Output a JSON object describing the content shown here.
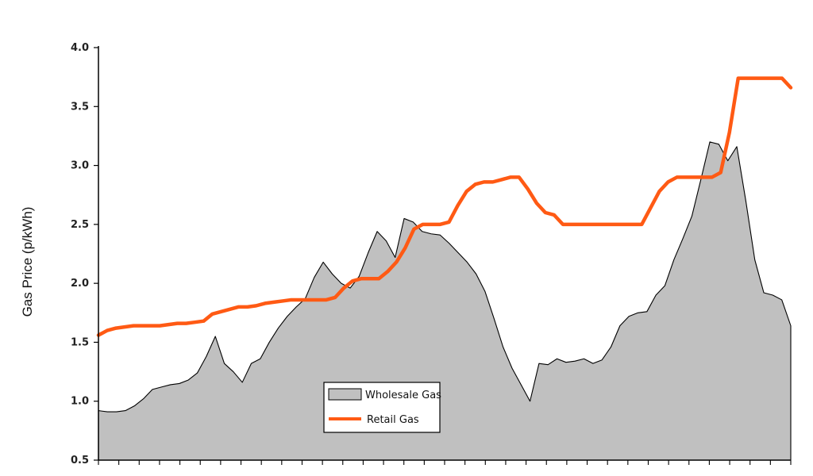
{
  "chart_data": {
    "type": "area",
    "ylabel": "Gas Price (p/kWh)",
    "ylim": [
      0.5,
      4.0
    ],
    "y_ticks": [
      "0.5",
      "1.0",
      "1.5",
      "2.0",
      "2.5",
      "3.0",
      "3.5",
      "4.0"
    ],
    "grid": false,
    "legend_position": "bottom-center",
    "series": [
      {
        "name": "Wholesale Gas",
        "kind": "area",
        "color": "#c0c0c0",
        "values": [
          0.92,
          0.91,
          0.91,
          0.92,
          0.96,
          1.02,
          1.1,
          1.12,
          1.14,
          1.15,
          1.18,
          1.24,
          1.38,
          1.55,
          1.32,
          1.25,
          1.16,
          1.32,
          1.36,
          1.5,
          1.62,
          1.72,
          1.8,
          1.87,
          2.05,
          2.18,
          2.08,
          2.0,
          1.96,
          2.06,
          2.26,
          2.44,
          2.36,
          2.22,
          2.55,
          2.52,
          2.44,
          2.42,
          2.41,
          2.34,
          2.26,
          2.18,
          2.08,
          1.93,
          1.7,
          1.46,
          1.28,
          1.14,
          1.0,
          1.32,
          1.31,
          1.36,
          1.33,
          1.34,
          1.36,
          1.32,
          1.35,
          1.46,
          1.64,
          1.72,
          1.75,
          1.76,
          1.9,
          1.98,
          2.2,
          2.38,
          2.57,
          2.88,
          3.2,
          3.18,
          3.04,
          3.16,
          2.7,
          2.2,
          1.92,
          1.9,
          1.86,
          1.64
        ]
      },
      {
        "name": "Retail Gas",
        "kind": "line",
        "color": "#ff5a14",
        "values": [
          1.56,
          1.6,
          1.62,
          1.63,
          1.64,
          1.64,
          1.64,
          1.64,
          1.65,
          1.66,
          1.66,
          1.67,
          1.68,
          1.74,
          1.76,
          1.78,
          1.8,
          1.8,
          1.81,
          1.83,
          1.84,
          1.85,
          1.86,
          1.86,
          1.86,
          1.86,
          1.86,
          1.88,
          1.96,
          2.02,
          2.04,
          2.04,
          2.04,
          2.1,
          2.18,
          2.3,
          2.46,
          2.5,
          2.5,
          2.5,
          2.52,
          2.66,
          2.78,
          2.84,
          2.86,
          2.86,
          2.88,
          2.9,
          2.9,
          2.8,
          2.68,
          2.6,
          2.58,
          2.5,
          2.5,
          2.5,
          2.5,
          2.5,
          2.5,
          2.5,
          2.5,
          2.5,
          2.5,
          2.64,
          2.78,
          2.86,
          2.9,
          2.9,
          2.9,
          2.9,
          2.9,
          2.94,
          3.28,
          3.74,
          3.74,
          3.74,
          3.74,
          3.74,
          3.74,
          3.66
        ]
      }
    ]
  }
}
